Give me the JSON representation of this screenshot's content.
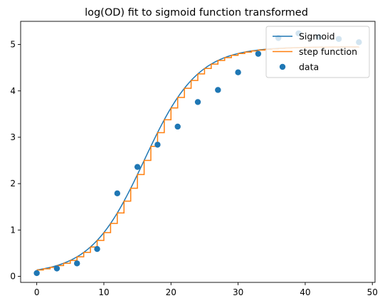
{
  "chart_data": {
    "type": "line",
    "title": "log(OD) fit to sigmoid function transformed",
    "xlabel": "",
    "ylabel": "",
    "xlim": [
      -2.4,
      50.4
    ],
    "ylim": [
      -0.13,
      5.5
    ],
    "xticks": [
      0,
      10,
      20,
      30,
      40,
      50
    ],
    "yticks": [
      0,
      1,
      2,
      3,
      4,
      5
    ],
    "grid": false,
    "legend": {
      "placement": "top-right",
      "entries": [
        {
          "label": "Sigmoid",
          "kind": "line",
          "color": "#1f77b4"
        },
        {
          "label": "step function",
          "kind": "line",
          "color": "#ff7f0e"
        },
        {
          "label": "data",
          "kind": "marker",
          "color": "#1f77b4"
        }
      ]
    },
    "sigmoid": {
      "name": "Sigmoid",
      "color": "#1f77b4",
      "x_range": [
        0,
        48
      ],
      "params": {
        "base": 0.05,
        "amplitude": 4.9,
        "midpoint": 16,
        "rate": 0.25
      }
    },
    "step_series": {
      "name": "step function",
      "color": "#ff7f0e",
      "x_range": [
        0,
        48
      ],
      "step": 1
    },
    "scatter": {
      "name": "data",
      "color": "#1f77b4",
      "x": [
        0,
        3,
        6,
        9,
        12,
        15,
        18,
        21,
        24,
        27,
        30,
        33,
        36,
        39,
        42,
        45,
        48
      ],
      "y": [
        0.07,
        0.17,
        0.28,
        0.59,
        1.79,
        2.36,
        2.84,
        3.23,
        3.76,
        4.02,
        4.4,
        4.8,
        5.14,
        5.24,
        5.16,
        5.12,
        5.05
      ]
    }
  }
}
